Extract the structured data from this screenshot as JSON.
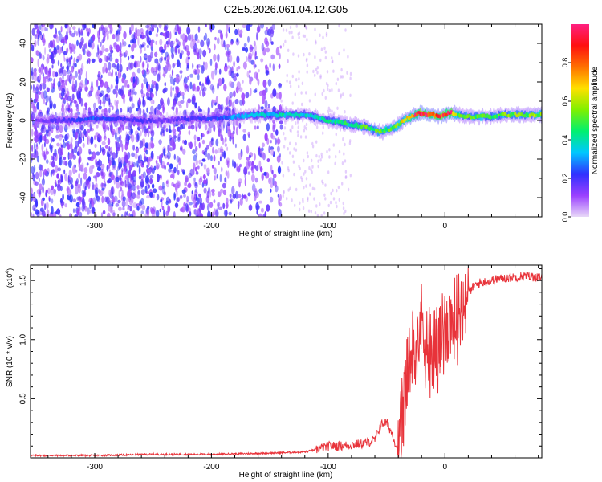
{
  "title": "C2E5.2026.061.04.12.G05",
  "chart_data": [
    {
      "type": "heatmap",
      "title": "C2E5.2026.061.04.12.G05",
      "xlabel": "Height of straight line (km)",
      "ylabel": "Frequency (Hz)",
      "xlim": [
        -355,
        83
      ],
      "ylim": [
        -50,
        50
      ],
      "x_ticks": [
        -300,
        -200,
        -100,
        0
      ],
      "x_tick_labels": [
        "-300",
        "-200",
        "-100",
        "0"
      ],
      "y_ticks": [
        -40,
        -20,
        0,
        20,
        40
      ],
      "y_tick_labels": [
        "-40",
        "-20",
        "0",
        "20",
        "40"
      ],
      "colorbar": {
        "label": "Normalized spectral amplitude",
        "range": [
          0,
          1
        ],
        "ticks": [
          0.0,
          0.2,
          0.4,
          0.6,
          0.8
        ],
        "tick_labels": [
          "0.0",
          "0.2",
          "0.4",
          "0.6",
          "0.8"
        ],
        "colors": [
          "#e8d8f8",
          "#9a40ff",
          "#3030ff",
          "#00c8ff",
          "#00f070",
          "#80f000",
          "#ffe000",
          "#ff7000",
          "#ff1010",
          "#ff2080"
        ]
      },
      "ridge": {
        "description_free": true,
        "x": [
          -345,
          -320,
          -300,
          -280,
          -260,
          -240,
          -220,
          -200,
          -180,
          -160,
          -140,
          -120,
          -100,
          -90,
          -80,
          -70,
          -60,
          -55,
          -50,
          -45,
          -40,
          -35,
          -30,
          -25,
          -20,
          -15,
          -10,
          -5,
          0,
          5,
          10,
          20,
          30,
          40,
          50,
          60,
          70,
          83
        ],
        "y": [
          0,
          0,
          1,
          1,
          0,
          0,
          1,
          1,
          2,
          3,
          3,
          3,
          0,
          -1,
          -2,
          -3,
          -5,
          -6,
          -5,
          -4,
          -2,
          0,
          2,
          3,
          4,
          3,
          3,
          2,
          3,
          4,
          3,
          2,
          2,
          2,
          3,
          3,
          3,
          3
        ],
        "amp": [
          0.15,
          0.2,
          0.25,
          0.2,
          0.2,
          0.15,
          0.2,
          0.22,
          0.3,
          0.35,
          0.4,
          0.38,
          0.42,
          0.45,
          0.45,
          0.5,
          0.55,
          0.5,
          0.55,
          0.55,
          0.6,
          0.65,
          0.75,
          0.9,
          0.95,
          0.98,
          0.9,
          0.85,
          0.9,
          1.0,
          0.55,
          0.5,
          0.55,
          0.5,
          0.55,
          0.55,
          0.55,
          0.6
        ]
      }
    },
    {
      "type": "line",
      "xlabel": "Height of straight line (km)",
      "ylabel": "SNR (10 * v/v)",
      "y_multiplier_label": "(x10",
      "y_multiplier_exp": "4",
      "y_multiplier_close": ")",
      "xlim": [
        -355,
        83
      ],
      "ylim": [
        0,
        1.63
      ],
      "x_ticks": [
        -300,
        -200,
        -100,
        0
      ],
      "x_tick_labels": [
        "-300",
        "-200",
        "-100",
        "0"
      ],
      "y_ticks": [
        0.5,
        1.0,
        1.5
      ],
      "y_tick_labels": [
        "0.5",
        "1.0",
        "1.5"
      ],
      "series": [
        {
          "name": "SNR",
          "color": "#e8333a",
          "x": [
            -355,
            -300,
            -250,
            -200,
            -150,
            -120,
            -110,
            -100,
            -90,
            -80,
            -70,
            -60,
            -55,
            -50,
            -45,
            -40,
            -35,
            -30,
            -25,
            -20,
            -15,
            -10,
            -5,
            0,
            5,
            10,
            15,
            20,
            25,
            30,
            40,
            50,
            60,
            70,
            83
          ],
          "y": [
            0.02,
            0.02,
            0.03,
            0.03,
            0.04,
            0.05,
            0.07,
            0.1,
            0.1,
            0.11,
            0.12,
            0.15,
            0.28,
            0.3,
            0.2,
            0.05,
            0.5,
            0.85,
            1.05,
            1.15,
            1.0,
            0.95,
            0.95,
            1.1,
            1.15,
            1.2,
            1.3,
            1.4,
            1.45,
            1.48,
            1.5,
            1.52,
            1.53,
            1.54,
            1.52
          ]
        }
      ]
    }
  ]
}
